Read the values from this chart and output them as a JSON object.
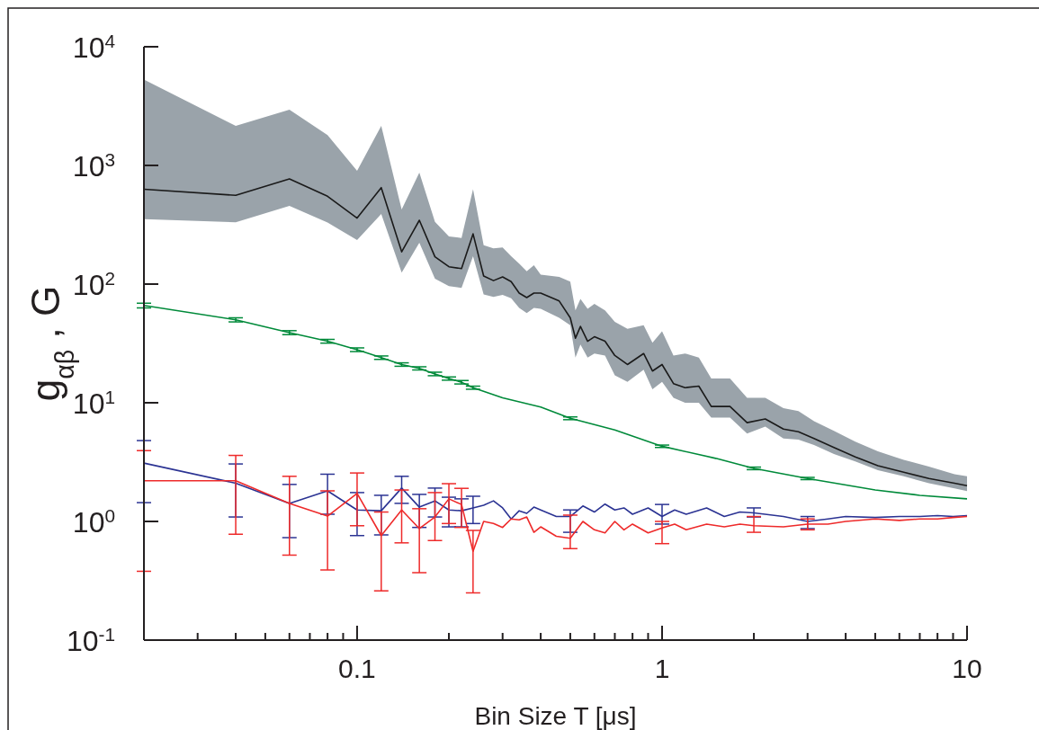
{
  "chart_data": {
    "type": "line",
    "xlabel": "Bin Size T [μs]",
    "ylabel": "g$_{αβ}$ ,  G",
    "log": "xy",
    "xlim": [
      0.02,
      10
    ],
    "ylim": [
      0.1,
      10000
    ],
    "xticks": [
      {
        "value": 0.02,
        "label": null
      },
      {
        "value": 0.03,
        "label": null
      },
      {
        "value": 0.04,
        "label": null
      },
      {
        "value": 0.05,
        "label": null
      },
      {
        "value": 0.06,
        "label": null
      },
      {
        "value": 0.07,
        "label": null
      },
      {
        "value": 0.08,
        "label": null
      },
      {
        "value": 0.09,
        "label": null
      },
      0.1,
      {
        "value": 0.2,
        "label": null
      },
      {
        "value": 0.3,
        "label": null
      },
      {
        "value": 0.4,
        "label": null
      },
      {
        "value": 0.5,
        "label": null
      },
      {
        "value": 0.6,
        "label": null
      },
      {
        "value": 0.7,
        "label": null
      },
      {
        "value": 0.8,
        "label": null
      },
      {
        "value": 0.9,
        "label": null
      },
      1,
      {
        "value": 2,
        "label": null
      },
      {
        "value": 3,
        "label": null
      },
      {
        "value": 4,
        "label": null
      },
      {
        "value": 5,
        "label": null
      },
      {
        "value": 6,
        "label": null
      },
      {
        "value": 7,
        "label": null
      },
      {
        "value": 8,
        "label": null
      },
      {
        "value": 9,
        "label": null
      },
      10
    ],
    "yticks": [
      {
        "value": 0.1,
        "label": "10$^{-1}$"
      },
      {
        "value": 1,
        "label": "10$^{0}$"
      },
      {
        "value": 10,
        "label": "10$^{1}$"
      },
      {
        "value": 100,
        "label": "10$^{2}$"
      },
      {
        "value": 1000,
        "label": "10$^{3}$"
      },
      {
        "value": 10000,
        "label": "10$^{4}$"
      }
    ],
    "series": [
      {
        "color": "#1a1a1a",
        "x": [
          0.02,
          0.04,
          0.06,
          0.08,
          0.1,
          0.12,
          0.14,
          0.16,
          0.18,
          0.2,
          0.22,
          0.24,
          0.26,
          0.28,
          0.3,
          0.32,
          0.34,
          0.36,
          0.38,
          0.4,
          0.46,
          0.5,
          0.52,
          0.54,
          0.57,
          0.6,
          0.65,
          0.7,
          0.77,
          0.87,
          0.93,
          1.0,
          1.09,
          1.19,
          1.32,
          1.45,
          1.67,
          1.9,
          2.18,
          2.5,
          2.8,
          3.15,
          3.66,
          4.3,
          5.1,
          6.2,
          7.5,
          9.1,
          10
        ],
        "values": [
          630,
          560,
          770,
          550,
          360,
          650,
          187,
          345,
          170,
          140,
          135,
          265,
          117,
          107,
          115,
          105,
          84,
          77,
          84,
          84,
          72,
          52,
          35,
          44,
          33,
          36,
          33,
          25,
          21,
          26,
          18.5,
          21,
          14.5,
          13.4,
          13.8,
          9.3,
          9.3,
          6.8,
          7.3,
          6.0,
          5.7,
          5.0,
          4.2,
          3.5,
          2.95,
          2.6,
          2.3,
          2.1,
          2.0
        ],
        "upper": [
          5300,
          2150,
          2950,
          1800,
          900,
          2150,
          425,
          870,
          335,
          252,
          245,
          630,
          213,
          200,
          204,
          172,
          149,
          128,
          144,
          120,
          115,
          105,
          60,
          75,
          62,
          68,
          60,
          48,
          42,
          45,
          32,
          40,
          25,
          26,
          24,
          16,
          16,
          11,
          11,
          9,
          8.5,
          7,
          5.8,
          4.7,
          3.9,
          3.3,
          2.9,
          2.5,
          2.4
        ],
        "lower": [
          353,
          332,
          457,
          330,
          235,
          390,
          125,
          223,
          111,
          96,
          93,
          172,
          82,
          78,
          81,
          76,
          63,
          57,
          63,
          62,
          52,
          45,
          24,
          31,
          24,
          26,
          25,
          17,
          15,
          19,
          13,
          15,
          11,
          10,
          10,
          7.5,
          7.5,
          5.5,
          6.3,
          5.0,
          4.9,
          4.4,
          3.7,
          3.2,
          2.7,
          2.4,
          2.1,
          1.9,
          1.8
        ]
      },
      {
        "color": "#008a3a",
        "x": [
          0.02,
          0.04,
          0.06,
          0.08,
          0.1,
          0.12,
          0.14,
          0.16,
          0.18,
          0.2,
          0.22,
          0.24,
          0.3,
          0.4,
          0.5,
          0.7,
          1,
          1.5,
          2,
          3,
          5,
          7,
          10
        ],
        "values": [
          66,
          50,
          39,
          33,
          28,
          24,
          21,
          19.5,
          17.5,
          16,
          14.9,
          13.4,
          11,
          9.2,
          7.4,
          5.9,
          4.3,
          3.4,
          2.8,
          2.3,
          1.84,
          1.66,
          1.55
        ],
        "errors": [
          3,
          2,
          1.5,
          1.2,
          1,
          0.8,
          0.7,
          0.6,
          0.6,
          0.5,
          0.5,
          0.4,
          null,
          null,
          0.2,
          null,
          0.1,
          null,
          0.07,
          0.05,
          null,
          null,
          null
        ]
      },
      {
        "color": "#2b3393",
        "x": [
          0.02,
          0.04,
          0.06,
          0.08,
          0.1,
          0.12,
          0.14,
          0.16,
          0.18,
          0.2,
          0.22,
          0.24,
          0.26,
          0.28,
          0.3,
          0.32,
          0.34,
          0.36,
          0.38,
          0.4,
          0.45,
          0.5,
          0.55,
          0.6,
          0.65,
          0.7,
          0.75,
          0.8,
          0.9,
          1.0,
          1.1,
          1.2,
          1.4,
          1.6,
          1.8,
          2.0,
          2.5,
          3,
          3.5,
          4,
          5,
          6,
          7,
          8,
          9,
          10
        ],
        "values": [
          3.1,
          2.1,
          1.42,
          1.81,
          1.25,
          1.23,
          1.91,
          1.32,
          1.49,
          1.25,
          1.23,
          1.3,
          1.37,
          1.49,
          1.3,
          1.05,
          1.23,
          1.17,
          1.32,
          1.25,
          1.1,
          1.1,
          1.35,
          1.2,
          1.4,
          1.25,
          1.3,
          1.15,
          1.3,
          1.1,
          1.25,
          1.15,
          1.3,
          1.1,
          1.2,
          1.18,
          1.1,
          1.0,
          1.05,
          1.1,
          1.08,
          1.1,
          1.1,
          1.12,
          1.1,
          1.12
        ],
        "errors": [
          [
            1.44,
            4.8
          ],
          [
            1.09,
            3.05
          ],
          [
            0.73,
            2.05
          ],
          [
            1.15,
            2.5
          ],
          [
            0.76,
            1.75
          ],
          [
            0.77,
            1.66
          ],
          [
            1.42,
            2.4
          ],
          [
            0.89,
            1.69
          ],
          [
            1.09,
            1.91
          ],
          [
            0.9,
            1.6
          ],
          [
            0.9,
            1.55
          ],
          [
            0.96,
            1.63
          ],
          null,
          null,
          null,
          null,
          null,
          null,
          null,
          null,
          null,
          [
            0.81,
            1.25
          ],
          null,
          null,
          null,
          null,
          null,
          null,
          null,
          [
            0.95,
            1.39
          ],
          null,
          null,
          null,
          null,
          null,
          [
            1.09,
            1.3
          ],
          null,
          [
            0.87,
            1.1
          ],
          null,
          null,
          null,
          null,
          null,
          null,
          null,
          null
        ]
      },
      {
        "color": "#ee2a2a",
        "x": [
          0.02,
          0.04,
          0.06,
          0.08,
          0.1,
          0.12,
          0.14,
          0.16,
          0.18,
          0.2,
          0.22,
          0.24,
          0.26,
          0.28,
          0.3,
          0.32,
          0.34,
          0.36,
          0.38,
          0.4,
          0.45,
          0.5,
          0.55,
          0.6,
          0.65,
          0.7,
          0.75,
          0.8,
          0.9,
          1.0,
          1.1,
          1.2,
          1.4,
          1.6,
          1.8,
          2.0,
          2.5,
          3,
          3.5,
          4,
          5,
          6,
          7,
          8,
          9,
          10
        ],
        "values": [
          2.2,
          2.2,
          1.42,
          1.11,
          1.72,
          0.76,
          1.25,
          0.87,
          1.09,
          1.55,
          1.39,
          0.56,
          1.0,
          0.96,
          0.89,
          1.05,
          1.03,
          1.09,
          0.81,
          0.9,
          0.75,
          0.72,
          1.0,
          0.85,
          0.8,
          1.0,
          0.85,
          0.95,
          0.8,
          0.88,
          0.95,
          0.85,
          0.95,
          0.9,
          0.95,
          0.92,
          0.9,
          0.95,
          0.95,
          1.0,
          1.05,
          1.02,
          1.05,
          1.05,
          1.08,
          1.1
        ],
        "errors": [
          [
            0.38,
            3.95
          ],
          [
            0.78,
            3.6
          ],
          [
            0.52,
            2.4
          ],
          [
            0.39,
            1.81
          ],
          [
            0.92,
            2.56
          ],
          [
            0.26,
            1.2
          ],
          [
            0.66,
            1.84
          ],
          [
            0.37,
            1.28
          ],
          [
            0.69,
            1.75
          ],
          [
            0.96,
            2.08
          ],
          [
            0.89,
            1.9
          ],
          [
            0.25,
            0.84
          ],
          null,
          null,
          null,
          null,
          null,
          null,
          null,
          null,
          null,
          [
            0.59,
            1.13
          ],
          null,
          null,
          null,
          null,
          null,
          null,
          null,
          [
            0.65,
            1.0
          ],
          null,
          null,
          null,
          null,
          null,
          [
            0.81,
            1.1
          ],
          null,
          [
            0.85,
            1.05
          ],
          null,
          null,
          null,
          null,
          null,
          null,
          null,
          null
        ]
      }
    ]
  }
}
